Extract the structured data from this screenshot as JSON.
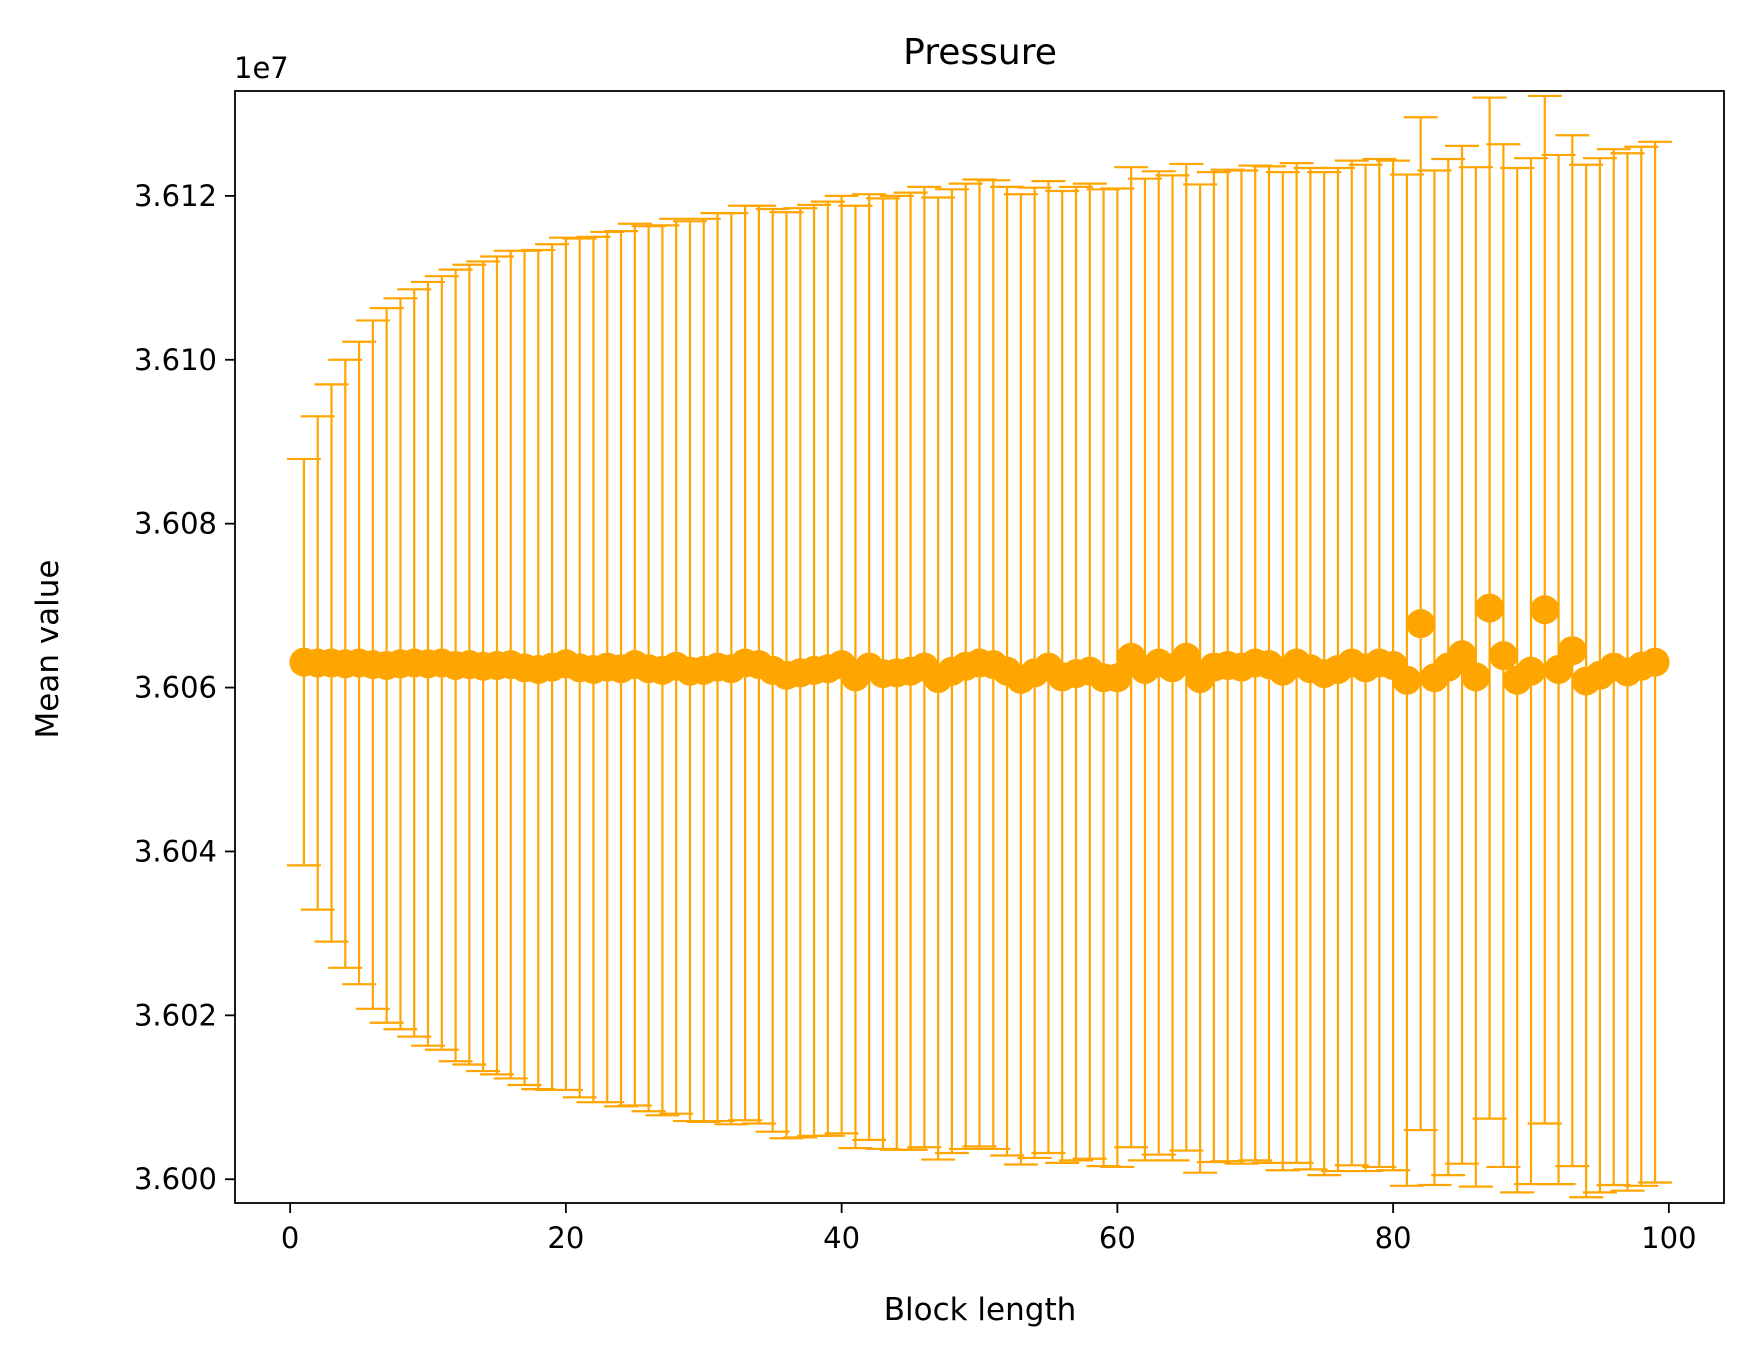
{
  "chart_data": {
    "type": "scatter",
    "title": "Pressure",
    "xlabel": "Block length",
    "ylabel": "Mean value",
    "offset_text": "1e7",
    "xlim": [
      -4,
      104
    ],
    "ylim": [
      3.59971,
      3.61328
    ],
    "xticks": [
      0,
      20,
      40,
      60,
      80,
      100
    ],
    "xtick_labels": [
      "0",
      "20",
      "40",
      "60",
      "80",
      "100"
    ],
    "yticks": [
      3.6,
      3.602,
      3.604,
      3.606,
      3.608,
      3.61,
      3.612
    ],
    "ytick_labels": [
      "3.600",
      "3.602",
      "3.604",
      "3.606",
      "3.608",
      "3.610",
      "3.612"
    ],
    "grid": false,
    "color": "#ffa500",
    "x": [
      1,
      2,
      3,
      4,
      5,
      6,
      7,
      8,
      9,
      10,
      11,
      12,
      13,
      14,
      15,
      16,
      17,
      18,
      19,
      20,
      21,
      22,
      23,
      24,
      25,
      26,
      27,
      28,
      29,
      30,
      31,
      32,
      33,
      34,
      35,
      36,
      37,
      38,
      39,
      40,
      41,
      42,
      43,
      44,
      45,
      46,
      47,
      48,
      49,
      50,
      51,
      52,
      53,
      54,
      55,
      56,
      57,
      58,
      59,
      60,
      61,
      62,
      63,
      64,
      65,
      66,
      67,
      68,
      69,
      70,
      71,
      72,
      73,
      74,
      75,
      76,
      77,
      78,
      79,
      80,
      81,
      82,
      83,
      84,
      85,
      86,
      87,
      88,
      89,
      90,
      91,
      92,
      93,
      94,
      95,
      96,
      97,
      98,
      99
    ],
    "y": [
      3.60631,
      3.6063,
      3.6063,
      3.60629,
      3.6063,
      3.60628,
      3.60627,
      3.60629,
      3.6063,
      3.60629,
      3.6063,
      3.60627,
      3.60628,
      3.60626,
      3.60627,
      3.60628,
      3.60624,
      3.60622,
      3.60625,
      3.60629,
      3.60624,
      3.60622,
      3.60625,
      3.60623,
      3.60628,
      3.60623,
      3.60621,
      3.60626,
      3.6062,
      3.60621,
      3.60625,
      3.60623,
      3.6063,
      3.60628,
      3.60621,
      3.60615,
      3.60618,
      3.60621,
      3.60623,
      3.60628,
      3.60613,
      3.60625,
      3.60617,
      3.60618,
      3.6062,
      3.60625,
      3.60611,
      3.6062,
      3.60626,
      3.6063,
      3.60628,
      3.6062,
      3.6061,
      3.60618,
      3.60625,
      3.60613,
      3.60617,
      3.6062,
      3.60612,
      3.60612,
      3.60637,
      3.60622,
      3.6063,
      3.60624,
      3.60637,
      3.60611,
      3.60625,
      3.60627,
      3.60625,
      3.6063,
      3.60628,
      3.6062,
      3.6063,
      3.60623,
      3.60617,
      3.60622,
      3.6063,
      3.60624,
      3.6063,
      3.60627,
      3.60609,
      3.60678,
      3.60612,
      3.60625,
      3.6064,
      3.60613,
      3.60697,
      3.60639,
      3.60609,
      3.6062,
      3.60695,
      3.60622,
      3.60645,
      3.60608,
      3.60615,
      3.60625,
      3.60619,
      3.60626,
      3.60631
    ],
    "yerr": [
      0.00248,
      0.00301,
      0.0034,
      0.00371,
      0.00392,
      0.0042,
      0.00436,
      0.00446,
      0.00456,
      0.00466,
      0.00472,
      0.00483,
      0.00488,
      0.00494,
      0.00499,
      0.00505,
      0.00509,
      0.00512,
      0.00516,
      0.0052,
      0.00524,
      0.00528,
      0.00531,
      0.00534,
      0.00538,
      0.0054,
      0.00543,
      0.00546,
      0.00549,
      0.00551,
      0.00554,
      0.00556,
      0.00558,
      0.0056,
      0.00563,
      0.00565,
      0.00567,
      0.00568,
      0.0057,
      0.00572,
      0.00575,
      0.00577,
      0.0058,
      0.00582,
      0.00584,
      0.00586,
      0.00587,
      0.00588,
      0.00589,
      0.0059,
      0.00591,
      0.00591,
      0.00592,
      0.00592,
      0.00593,
      0.00593,
      0.00594,
      0.00595,
      0.00596,
      0.00597,
      0.00598,
      0.00599,
      0.006,
      0.00601,
      0.00602,
      0.00603,
      0.00604,
      0.00605,
      0.00606,
      0.00607,
      0.00608,
      0.00609,
      0.0061,
      0.00611,
      0.00612,
      0.00612,
      0.00613,
      0.00614,
      0.00615,
      0.00616,
      0.00617,
      0.00618,
      0.00619,
      0.0062,
      0.00621,
      0.00622,
      0.00623,
      0.00624,
      0.00625,
      0.00626,
      0.00627,
      0.00628,
      0.00629,
      0.0063,
      0.00631,
      0.00632,
      0.00633,
      0.00634,
      0.00635
    ]
  }
}
